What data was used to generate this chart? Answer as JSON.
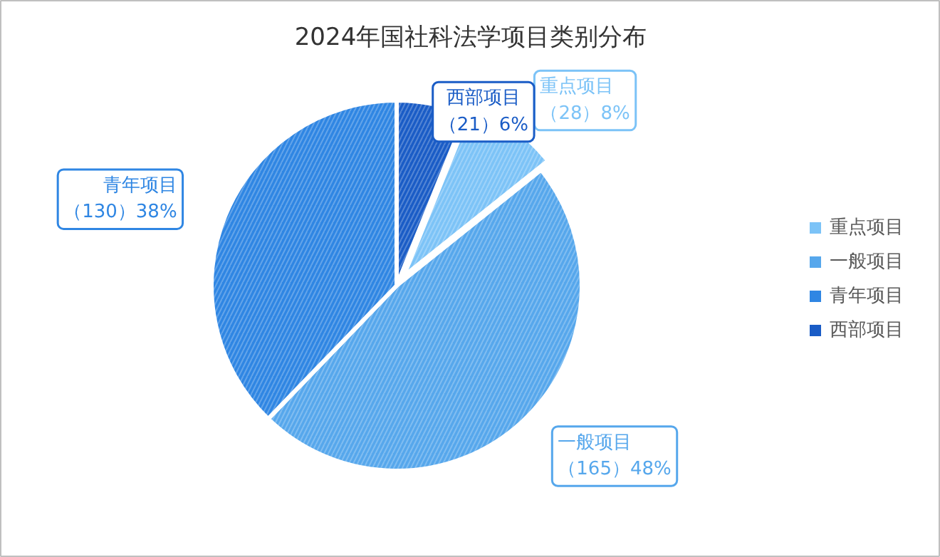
{
  "chart_data": {
    "type": "pie",
    "title": "2024年国社科法学项目类别分布",
    "categories": [
      "重点项目",
      "一般项目",
      "青年项目",
      "西部项目"
    ],
    "values": [
      28,
      165,
      130,
      21
    ],
    "colors": [
      "#7cc3f7",
      "#56a7ec",
      "#2f86e3",
      "#1a5cc6"
    ],
    "value_labels": [
      "（28）8%",
      "（165）48%",
      "（130）38%",
      "（21）6%"
    ],
    "legend": "right"
  }
}
